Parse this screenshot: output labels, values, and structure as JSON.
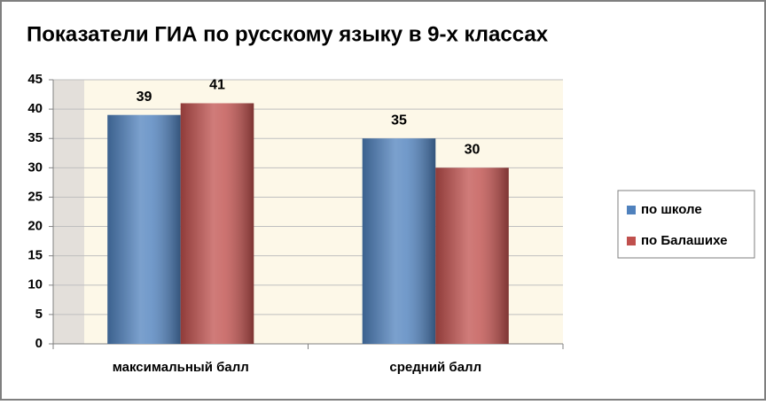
{
  "chart_data": {
    "type": "bar",
    "title": "Показатели ГИА по русскому языку в 9-х классах",
    "categories": [
      "максимальный балл",
      "средний балл"
    ],
    "series": [
      {
        "name": "по школе",
        "color": "#4f81bd",
        "values": [
          39,
          35
        ]
      },
      {
        "name": "по Балашихе",
        "color": "#c0504d",
        "values": [
          41,
          30
        ]
      }
    ],
    "ylim": [
      0,
      45
    ],
    "yticks": [
      0,
      5,
      10,
      15,
      20,
      25,
      30,
      35,
      40,
      45
    ],
    "grid": true,
    "legend": "right"
  }
}
